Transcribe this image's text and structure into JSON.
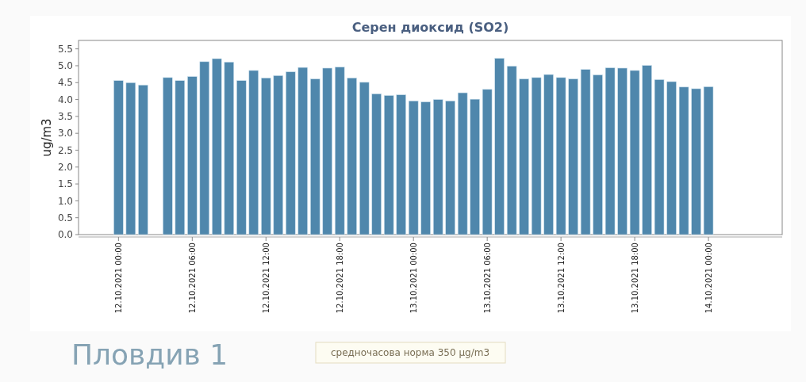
{
  "chart_data": {
    "type": "bar",
    "title": "Серен диоксид (SO2)",
    "ylabel": "ug/m3",
    "color": "#4f87ac",
    "x": [
      "2021-10-12T00:00",
      "2021-10-12T01:00",
      "2021-10-12T02:00",
      "2021-10-12T03:00",
      "2021-10-12T04:00",
      "2021-10-12T05:00",
      "2021-10-12T06:00",
      "2021-10-12T07:00",
      "2021-10-12T08:00",
      "2021-10-12T09:00",
      "2021-10-12T10:00",
      "2021-10-12T11:00",
      "2021-10-12T12:00",
      "2021-10-12T13:00",
      "2021-10-12T14:00",
      "2021-10-12T15:00",
      "2021-10-12T16:00",
      "2021-10-12T17:00",
      "2021-10-12T18:00",
      "2021-10-12T19:00",
      "2021-10-12T20:00",
      "2021-10-12T21:00",
      "2021-10-12T22:00",
      "2021-10-12T23:00",
      "2021-10-13T00:00",
      "2021-10-13T01:00",
      "2021-10-13T02:00",
      "2021-10-13T03:00",
      "2021-10-13T04:00",
      "2021-10-13T05:00",
      "2021-10-13T06:00",
      "2021-10-13T07:00",
      "2021-10-13T08:00",
      "2021-10-13T09:00",
      "2021-10-13T10:00",
      "2021-10-13T11:00",
      "2021-10-13T12:00",
      "2021-10-13T13:00",
      "2021-10-13T14:00",
      "2021-10-13T15:00",
      "2021-10-13T16:00",
      "2021-10-13T17:00",
      "2021-10-13T18:00",
      "2021-10-13T19:00",
      "2021-10-13T20:00",
      "2021-10-13T21:00",
      "2021-10-13T22:00",
      "2021-10-13T23:00",
      "2021-10-14T00:00"
    ],
    "values": [
      4.56,
      4.5,
      4.43,
      null,
      4.65,
      4.56,
      4.68,
      5.12,
      5.21,
      5.11,
      4.56,
      4.86,
      4.64,
      4.71,
      4.82,
      4.95,
      4.61,
      4.93,
      4.96,
      4.64,
      4.51,
      4.17,
      4.12,
      4.14,
      3.96,
      3.93,
      4.0,
      3.96,
      4.2,
      4.01,
      4.3,
      5.22,
      4.99,
      4.61,
      4.65,
      4.74,
      4.65,
      4.61,
      4.89,
      4.73,
      4.94,
      4.93,
      4.86,
      5.01,
      4.59,
      4.53,
      4.37,
      4.32,
      4.38
    ],
    "xlim": [
      "2021-10-11T20:45",
      "2021-10-14T06:00"
    ],
    "xticks": [
      {
        "value": "2021-10-12T00:00",
        "label": "12.10.2021 00:00"
      },
      {
        "value": "2021-10-12T06:00",
        "label": "12.10.2021 06:00"
      },
      {
        "value": "2021-10-12T12:00",
        "label": "12.10.2021 12:00"
      },
      {
        "value": "2021-10-12T18:00",
        "label": "12.10.2021 18:00"
      },
      {
        "value": "2021-10-13T00:00",
        "label": "13.10.2021 00:00"
      },
      {
        "value": "2021-10-13T06:00",
        "label": "13.10.2021 06:00"
      },
      {
        "value": "2021-10-13T12:00",
        "label": "13.10.2021 12:00"
      },
      {
        "value": "2021-10-13T18:00",
        "label": "13.10.2021 18:00"
      },
      {
        "value": "2021-10-14T00:00",
        "label": "14.10.2021 00:00"
      }
    ],
    "ylim": [
      0,
      5.75
    ],
    "yticks": [
      {
        "value": 0,
        "label": "0.0"
      },
      {
        "value": 0.5,
        "label": "0.5"
      },
      {
        "value": 1,
        "label": "1.0"
      },
      {
        "value": 1.5,
        "label": "1.5"
      },
      {
        "value": 2,
        "label": "2.0"
      },
      {
        "value": 2.5,
        "label": "2.5"
      },
      {
        "value": 3,
        "label": "3.0"
      },
      {
        "value": 3.5,
        "label": "3.5"
      },
      {
        "value": 4,
        "label": "4.0"
      },
      {
        "value": 4.5,
        "label": "4.5"
      },
      {
        "value": 5,
        "label": "5.0"
      },
      {
        "value": 5.5,
        "label": "5.5"
      }
    ],
    "grid": false,
    "annotations": [
      "Пловдив 1",
      "средночасова норма 350 μg/m3"
    ]
  }
}
